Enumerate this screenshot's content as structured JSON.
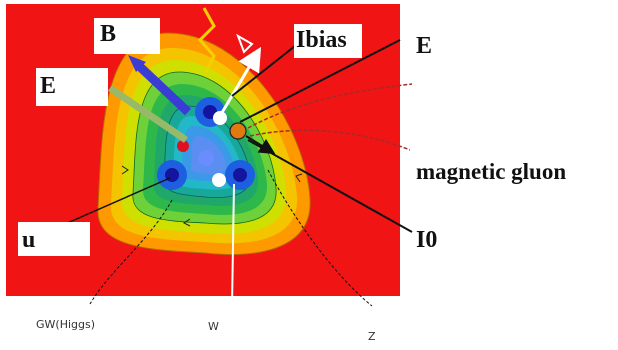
{
  "labels": {
    "b": "B",
    "e_left": "E",
    "ibias": "Ibias",
    "e_right": "E",
    "magnetic_gluon": "magnetic gluon",
    "i0": "I0",
    "u": "u",
    "gw_higgs": "GW(Higgs)",
    "w": "W",
    "z": "Z"
  },
  "colors": {
    "background_panel": "#f01414",
    "contour_outer": "#ff9900",
    "contour_mid": "#d9dd00",
    "contour_green": "#33c23a",
    "contour_cyan": "#22b8c8",
    "core_blue": "#1d5fe0",
    "arrow_b": "#3b3bd6",
    "arrow_e": "#98b86a",
    "arrow_i_bias": "#ffffff",
    "quark_dark": "#14149e",
    "quark_red": "#e01020"
  }
}
